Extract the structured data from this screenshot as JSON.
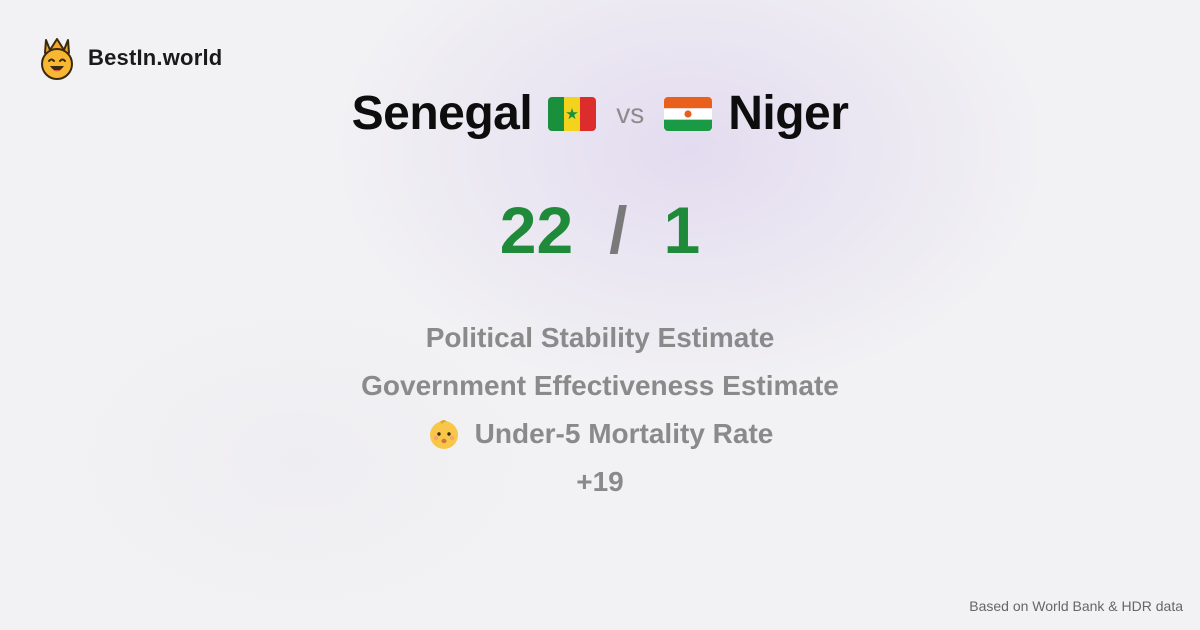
{
  "brand": {
    "name": "BestIn.world",
    "logo_icon": "crown-smiley-icon"
  },
  "comparison": {
    "left_country": "Senegal",
    "left_flag_icon": "senegal-flag-icon",
    "vs_label": "vs",
    "right_country": "Niger",
    "right_flag_icon": "niger-flag-icon"
  },
  "score": {
    "left": "22",
    "separator": "/",
    "right": "1",
    "color": "#1f8a3a"
  },
  "metrics": [
    {
      "label": "Political Stability Estimate"
    },
    {
      "label": "Government Effectiveness Estimate"
    },
    {
      "label": "Under-5 Mortality Rate",
      "icon": "baby-icon"
    },
    {
      "label": "+19"
    }
  ],
  "footer": {
    "source": "Based on World Bank & HDR data"
  }
}
